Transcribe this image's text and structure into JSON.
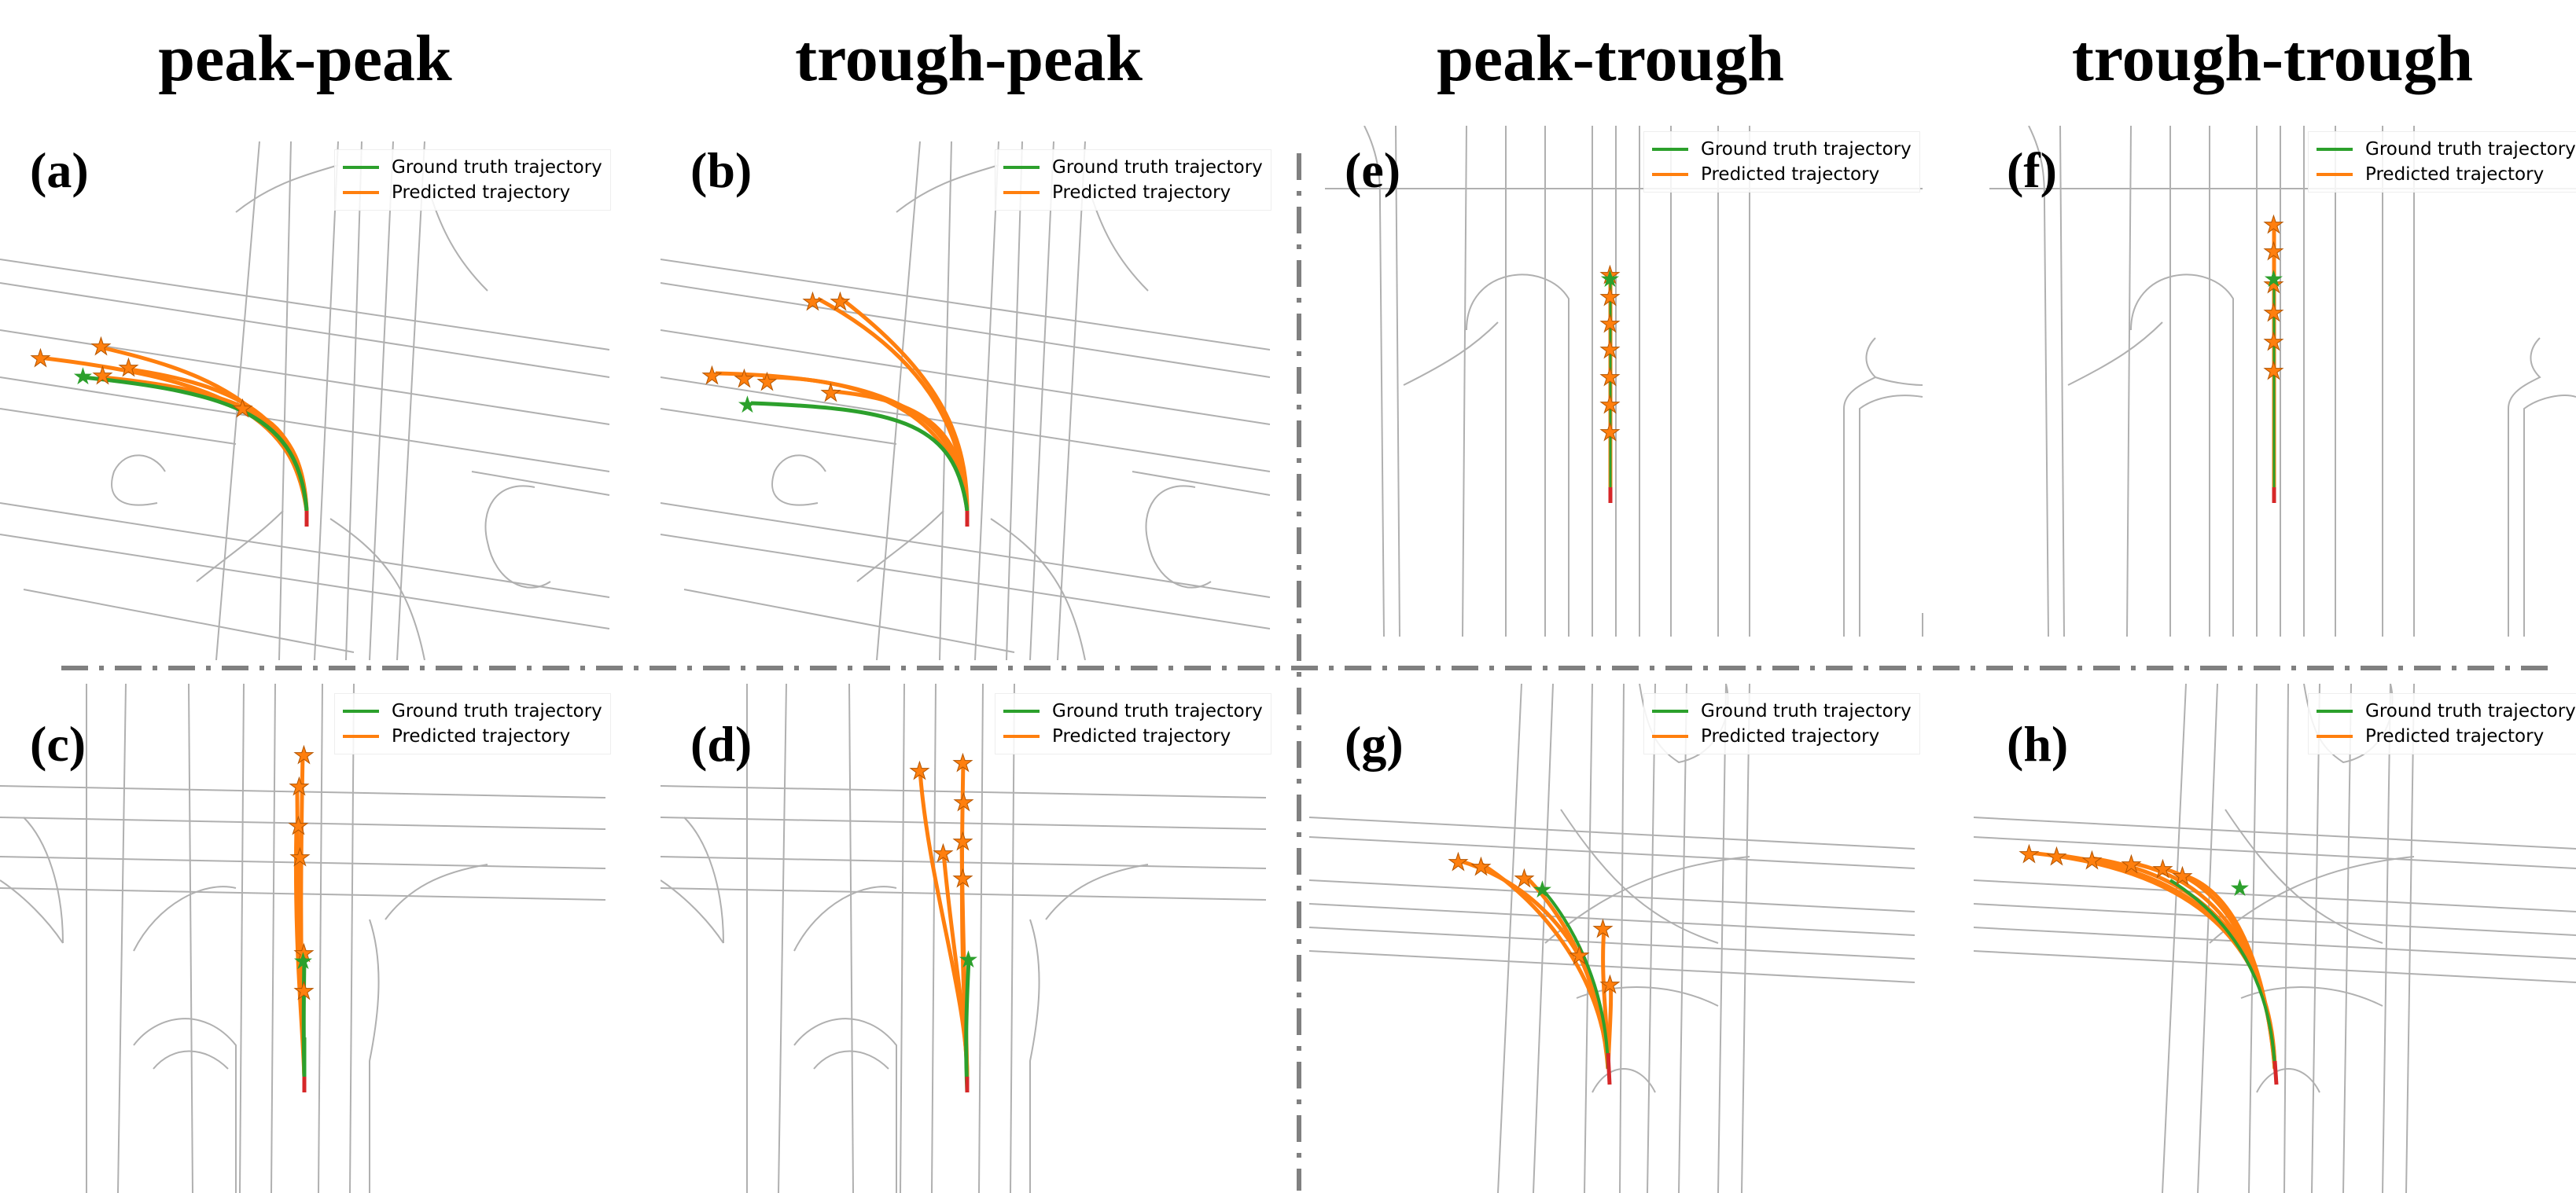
{
  "column_titles": [
    "peak-peak",
    "trough-peak",
    "peak-trough",
    "trough-trough"
  ],
  "legend": {
    "ground_truth": "Ground truth trajectory",
    "predicted": "Predicted trajectory"
  },
  "colors": {
    "ground_truth": "#2ca02c",
    "predicted": "#ff7f0e",
    "history": "#d62728",
    "road": "#b0b0b0",
    "divider": "#808080"
  },
  "panels": [
    {
      "id": "a",
      "label": "(a)"
    },
    {
      "id": "b",
      "label": "(b)"
    },
    {
      "id": "c",
      "label": "(c)"
    },
    {
      "id": "d",
      "label": "(d)"
    },
    {
      "id": "e",
      "label": "(e)"
    },
    {
      "id": "f",
      "label": "(f)"
    },
    {
      "id": "g",
      "label": "(g)"
    },
    {
      "id": "h",
      "label": "(h)"
    }
  ]
}
